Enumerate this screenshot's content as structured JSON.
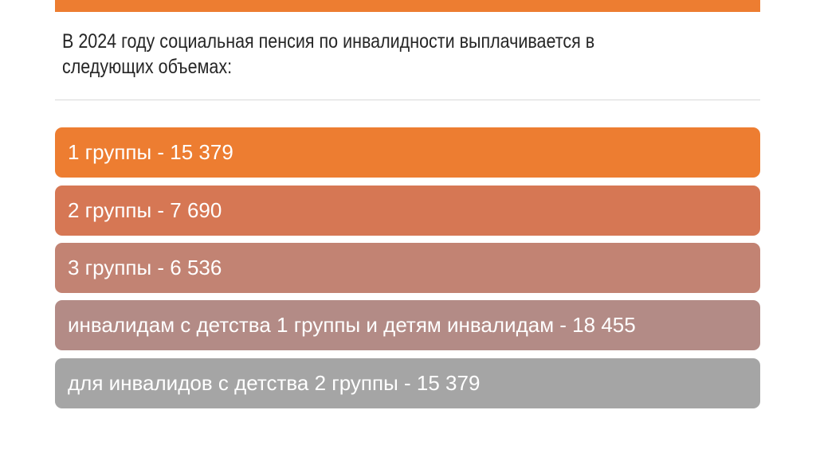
{
  "slide": {
    "title_lines": [
      "В 2024 году социальная пенсия по инвалидности выплачивается в",
      "следующих объемах:"
    ],
    "items": [
      {
        "label": "1 группы - 15 379",
        "color": "#ED7D31"
      },
      {
        "label": "2 группы - 7 690",
        "color": "#D67754"
      },
      {
        "label": "3 группы - 6 536",
        "color": "#C28373"
      },
      {
        "label": "инвалидам с детства 1 группы и детям инвалидам - 18 455",
        "color": "#B38B86"
      },
      {
        "label": "для инвалидов с детства 2 группы - 15 379",
        "color": "#A5A5A5"
      }
    ]
  }
}
